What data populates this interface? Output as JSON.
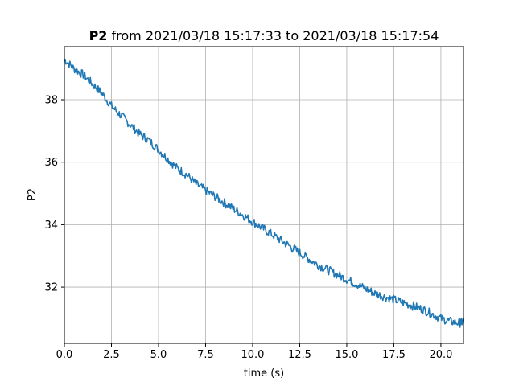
{
  "chart_data": {
    "type": "line",
    "title_bold": "P2",
    "title_rest": " from 2021/03/18 15:17:33 to 2021/03/18 15:17:54",
    "xlabel": "time (s)",
    "ylabel": "P2",
    "xlim": [
      0,
      21.2
    ],
    "ylim": [
      30.2,
      39.7
    ],
    "xticks": [
      0.0,
      2.5,
      5.0,
      7.5,
      10.0,
      12.5,
      15.0,
      17.5,
      20.0
    ],
    "xtick_labels": [
      "0.0",
      "2.5",
      "5.0",
      "7.5",
      "10.0",
      "12.5",
      "15.0",
      "17.5",
      "20.0"
    ],
    "yticks": [
      32,
      34,
      36,
      38
    ],
    "ytick_labels": [
      "32",
      "34",
      "36",
      "38"
    ],
    "grid": true,
    "series": [
      {
        "color": "#1f77b4",
        "x": [
          0.0,
          0.5,
          1.0,
          1.5,
          2.0,
          2.5,
          3.0,
          3.5,
          4.0,
          4.5,
          5.0,
          5.5,
          6.0,
          6.5,
          7.0,
          7.5,
          8.0,
          8.5,
          9.0,
          9.5,
          10.0,
          10.5,
          11.0,
          11.5,
          12.0,
          12.5,
          13.0,
          13.5,
          14.0,
          14.5,
          15.0,
          15.5,
          16.0,
          16.5,
          17.0,
          17.5,
          18.0,
          18.5,
          19.0,
          19.5,
          20.0,
          20.5,
          21.0,
          21.2
        ],
        "y": [
          39.3,
          39.0,
          38.8,
          38.5,
          38.2,
          37.8,
          37.5,
          37.2,
          36.9,
          36.7,
          36.4,
          36.1,
          35.8,
          35.6,
          35.3,
          35.1,
          34.9,
          34.7,
          34.5,
          34.3,
          34.1,
          33.9,
          33.7,
          33.5,
          33.3,
          33.1,
          32.9,
          32.7,
          32.55,
          32.4,
          32.25,
          32.1,
          31.95,
          31.8,
          31.7,
          31.6,
          31.5,
          31.4,
          31.3,
          31.15,
          31.0,
          30.9,
          30.85,
          30.9
        ]
      }
    ]
  }
}
